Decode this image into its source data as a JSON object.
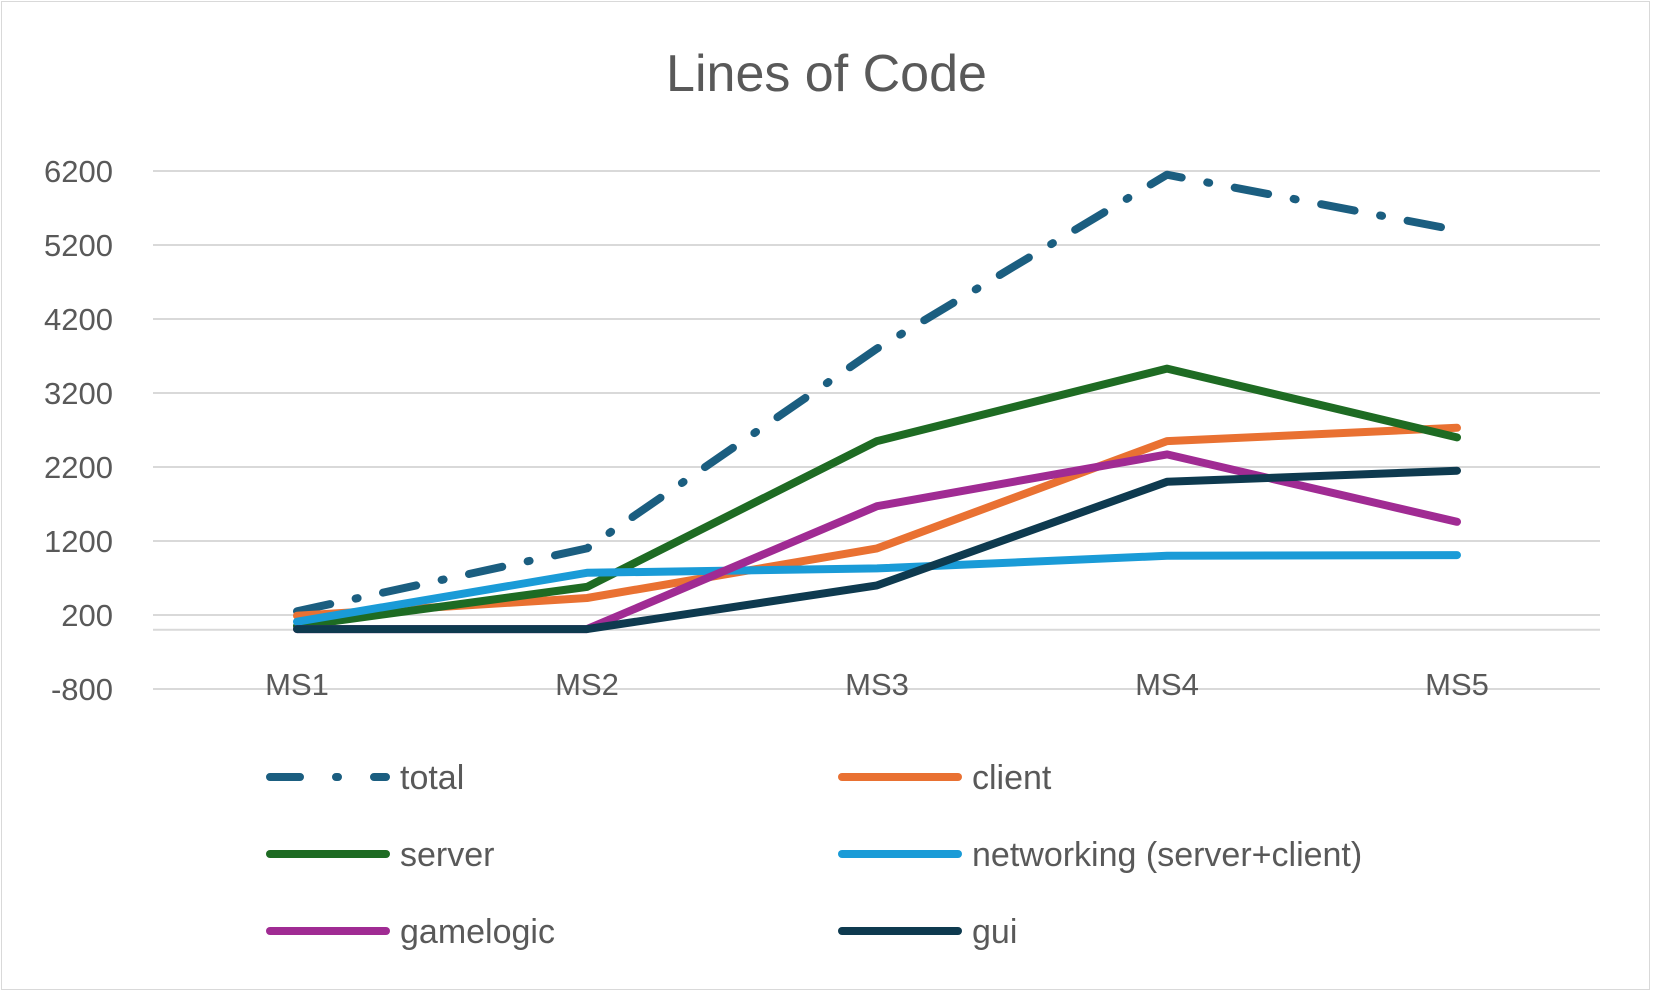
{
  "chart_data": {
    "type": "line",
    "title": "Lines of Code",
    "xlabel": "",
    "ylabel": "",
    "categories": [
      "MS1",
      "MS2",
      "MS3",
      "MS4",
      "MS5"
    ],
    "y_ticks": [
      -800,
      200,
      1200,
      2200,
      3200,
      4200,
      5200,
      6200
    ],
    "ylim": [
      -800,
      6200
    ],
    "grid": true,
    "legend_position": "bottom",
    "series": [
      {
        "name": "total",
        "color": "#1B5E80",
        "dash": "dash-dot",
        "values": [
          250,
          1100,
          3800,
          6150,
          5400
        ]
      },
      {
        "name": "client",
        "color": "#E97132",
        "dash": "solid",
        "values": [
          190,
          430,
          1100,
          2550,
          2730
        ]
      },
      {
        "name": "server",
        "color": "#1E6B23",
        "dash": "solid",
        "values": [
          50,
          580,
          2550,
          3530,
          2600
        ]
      },
      {
        "name": "networking (server+client)",
        "color": "#1A9BD7",
        "dash": "solid",
        "values": [
          110,
          770,
          830,
          1000,
          1010
        ]
      },
      {
        "name": "gamelogic",
        "color": "#A02B93",
        "dash": "solid",
        "values": [
          10,
          10,
          1670,
          2370,
          1460
        ]
      },
      {
        "name": "gui",
        "color": "#0E3A4F",
        "dash": "solid",
        "values": [
          10,
          10,
          600,
          2000,
          2150
        ]
      }
    ]
  }
}
